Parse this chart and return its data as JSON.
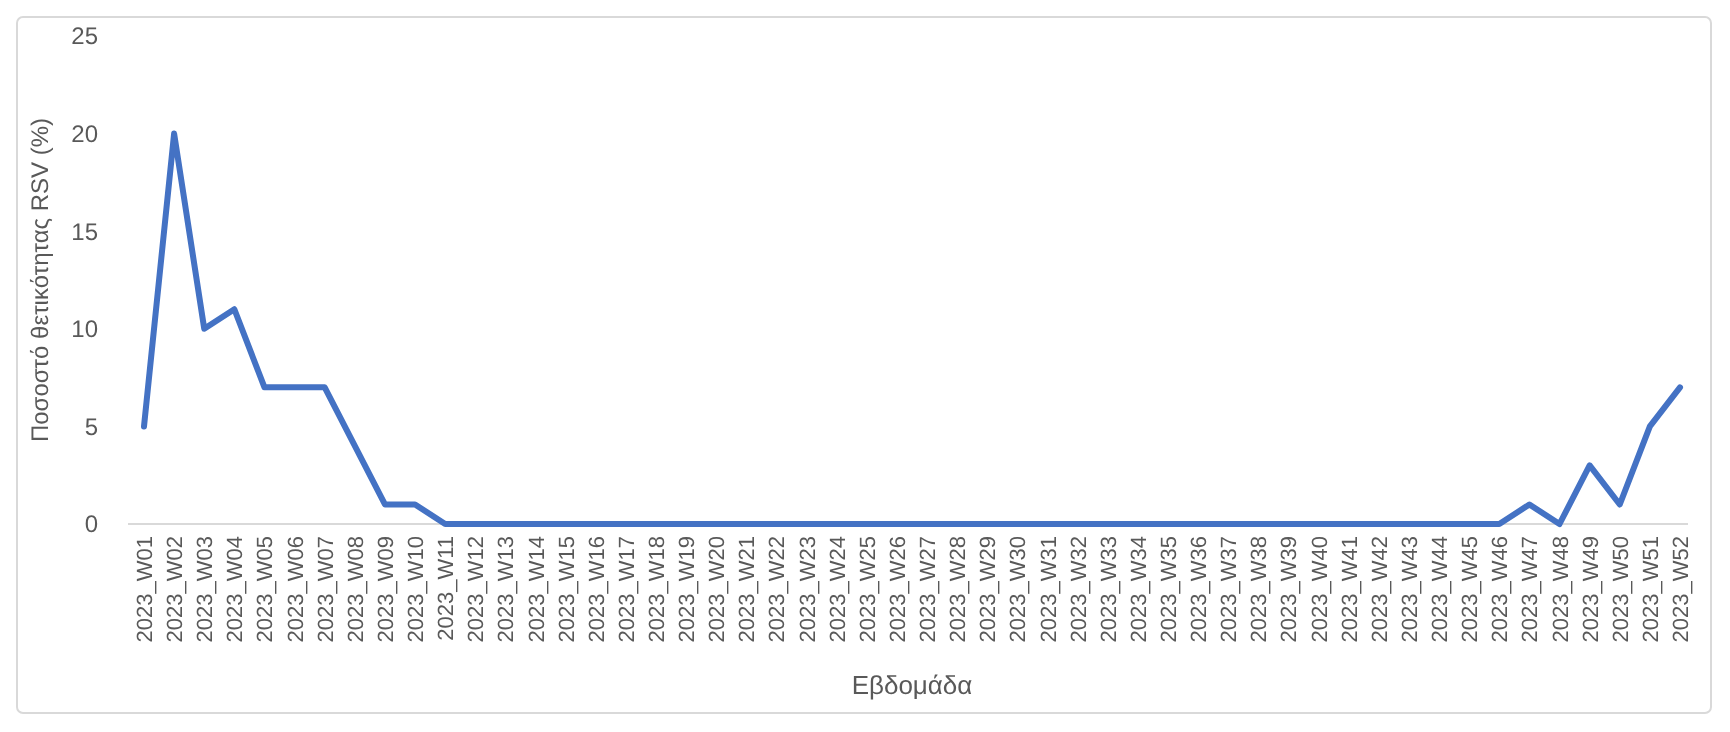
{
  "chart_data": {
    "type": "line",
    "xlabel": "Εβδομάδα",
    "ylabel": "Ποσοστό θετικότητας RSV (%)",
    "categories": [
      "2023_W01",
      "2023_W02",
      "2023_W03",
      "2023_W04",
      "2023_W05",
      "2023_W06",
      "2023_W07",
      "2023_W08",
      "2023_W09",
      "2023_W10",
      "2023_W11",
      "2023_W12",
      "2023_W13",
      "2023_W14",
      "2023_W15",
      "2023_W16",
      "2023_W17",
      "2023_W18",
      "2023_W19",
      "2023_W20",
      "2023_W21",
      "2023_W22",
      "2023_W23",
      "2023_W24",
      "2023_W25",
      "2023_W26",
      "2023_W27",
      "2023_W28",
      "2023_W29",
      "2023_W30",
      "2023_W31",
      "2023_W32",
      "2023_W33",
      "2023_W34",
      "2023_W35",
      "2023_W36",
      "2023_W37",
      "2023_W38",
      "2023_W39",
      "2023_W40",
      "2023_W41",
      "2023_W42",
      "2023_W43",
      "2023_W44",
      "2023_W45",
      "2023_W46",
      "2023_W47",
      "2023_W48",
      "2023_W49",
      "2023_W50",
      "2023_W51",
      "2023_W52"
    ],
    "series": [
      {
        "color": "#4472c4",
        "values": [
          5,
          20,
          10,
          11,
          7,
          7,
          7,
          4,
          1,
          1,
          0,
          0,
          0,
          0,
          0,
          0,
          0,
          0,
          0,
          0,
          0,
          0,
          0,
          0,
          0,
          0,
          0,
          0,
          0,
          0,
          0,
          0,
          0,
          0,
          0,
          0,
          0,
          0,
          0,
          0,
          0,
          0,
          0,
          0,
          0,
          0,
          1,
          0,
          3,
          1,
          5,
          7
        ]
      }
    ],
    "ylim": [
      0,
      25
    ],
    "yticks": [
      0,
      5,
      10,
      15,
      20,
      25
    ],
    "grid": false,
    "marker": "none",
    "line_style": "solid"
  }
}
